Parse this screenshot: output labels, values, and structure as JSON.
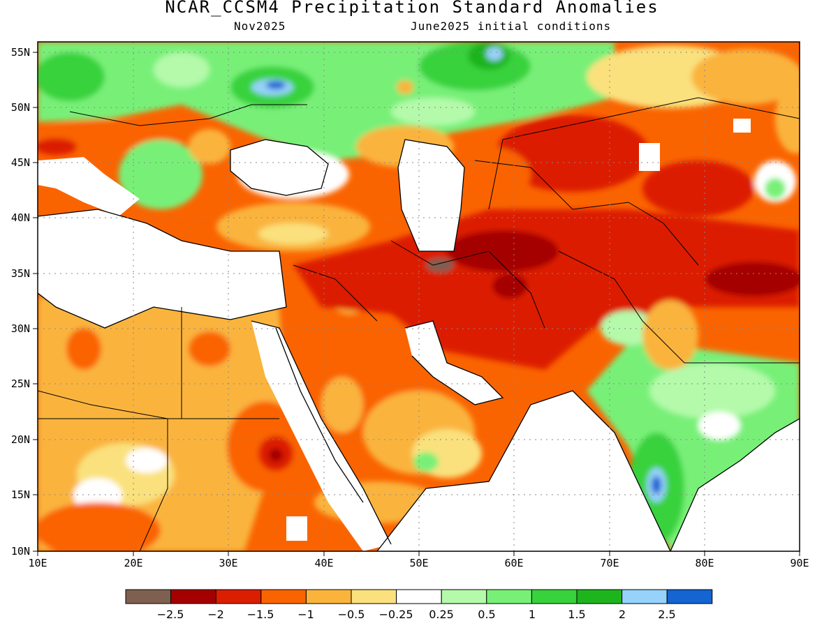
{
  "header": {
    "title": "NCAR_CCSM4 Precipitation Standard Anomalies",
    "month": "Nov2025",
    "init": "June2025 initial conditions"
  },
  "map": {
    "lon_ticks": [
      "10E",
      "20E",
      "30E",
      "40E",
      "50E",
      "60E",
      "70E",
      "80E",
      "90E"
    ],
    "lat_ticks": [
      "55N",
      "50N",
      "45N",
      "40N",
      "35N",
      "30N",
      "25N",
      "20N",
      "15N",
      "10N"
    ],
    "lon_range": [
      10,
      90
    ],
    "lat_range": [
      10,
      56.5
    ]
  },
  "colorbar": {
    "colors": [
      "#7f5f4f",
      "#a50000",
      "#dc1e00",
      "#fa6400",
      "#fab43c",
      "#fae17d",
      "#ffffff",
      "#b4faaa",
      "#78f078",
      "#37d23c",
      "#1eb41e",
      "#96d2fa",
      "#1464d2"
    ],
    "labels": [
      "−2.5",
      "−2",
      "−1.5",
      "−1",
      "−0.5",
      "−0.25",
      "0.25",
      "0.5",
      "1",
      "1.5",
      "2",
      "2.5"
    ]
  }
}
